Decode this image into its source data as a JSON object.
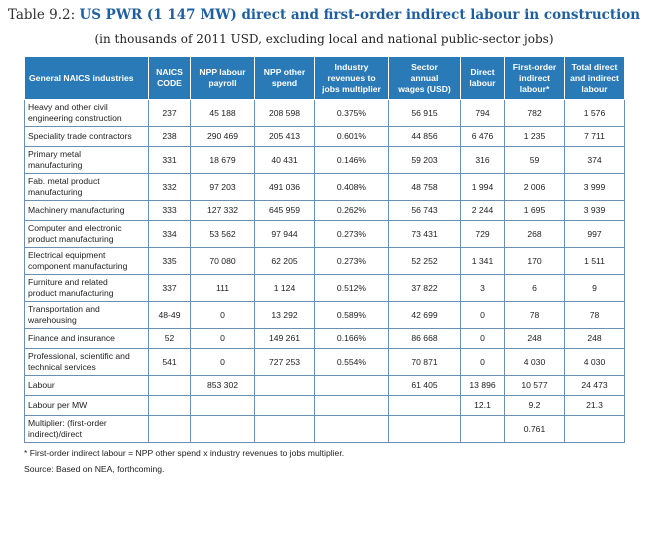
{
  "title_prefix": "Table 9.2: ",
  "title": "US PWR (1 147 MW) direct and first-order indirect labour in construction",
  "subtitle": "(in thousands of 2011 USD, excluding local and national public-sector jobs)",
  "headers": {
    "industry": "General NAICS industries",
    "naics_1": "NAICS",
    "naics_2": "CODE",
    "npp_labour_1": "NPP labour",
    "npp_labour_2": "payroll",
    "npp_other_1": "NPP other",
    "npp_other_2": "spend",
    "revenues_1": "Industry",
    "revenues_2": "revenues to",
    "revenues_3": "jobs multiplier",
    "wages_1": "Sector",
    "wages_2": "annual",
    "wages_3": "wages (USD)",
    "direct_1": "Direct",
    "direct_2": "labour",
    "first_1": "First-order",
    "first_2": "indirect",
    "first_3": "labour*",
    "total_1": "Total direct",
    "total_2": "and indirect",
    "total_3": "labour"
  },
  "rows": [
    {
      "l1": "Heavy and other civil",
      "l2": "engineering construction",
      "code": "237",
      "payroll": "45 188",
      "spend": "208 598",
      "mult": "0.375%",
      "wages": "56 915",
      "direct": "794",
      "indirect": "782",
      "total": "1 576"
    },
    {
      "l1": "Speciality trade contractors",
      "l2": "",
      "code": "238",
      "payroll": "290 469",
      "spend": "205 413",
      "mult": "0.601%",
      "wages": "44 856",
      "direct": "6 476",
      "indirect": "1 235",
      "total": "7 711"
    },
    {
      "l1": "Primary metal",
      "l2": "manufacturing",
      "code": "331",
      "payroll": "18 679",
      "spend": "40 431",
      "mult": "0.146%",
      "wages": "59 203",
      "direct": "316",
      "indirect": "59",
      "total": "374"
    },
    {
      "l1": "Fab. metal product",
      "l2": "manufacturing",
      "code": "332",
      "payroll": "97 203",
      "spend": "491 036",
      "mult": "0.408%",
      "wages": "48 758",
      "direct": "1 994",
      "indirect": "2 006",
      "total": "3 999"
    },
    {
      "l1": "Machinery manufacturing",
      "l2": "",
      "code": "333",
      "payroll": "127 332",
      "spend": "645 959",
      "mult": "0.262%",
      "wages": "56 743",
      "direct": "2 244",
      "indirect": "1 695",
      "total": "3 939"
    },
    {
      "l1": "Computer and electronic",
      "l2": "product manufacturing",
      "code": "334",
      "payroll": "53 562",
      "spend": "97 944",
      "mult": "0.273%",
      "wages": "73 431",
      "direct": "729",
      "indirect": "268",
      "total": "997"
    },
    {
      "l1": "Electrical equipment",
      "l2": "component manufacturing",
      "code": "335",
      "payroll": "70 080",
      "spend": "62 205",
      "mult": "0.273%",
      "wages": "52 252",
      "direct": "1 341",
      "indirect": "170",
      "total": "1 511"
    },
    {
      "l1": "Furniture and related",
      "l2": "product manufacturing",
      "code": "337",
      "payroll": "111",
      "spend": "1 124",
      "mult": "0.512%",
      "wages": "37 822",
      "direct": "3",
      "indirect": "6",
      "total": "9"
    },
    {
      "l1": "Transportation and",
      "l2": "warehousing",
      "code": "48-49",
      "payroll": "0",
      "spend": "13 292",
      "mult": "0.589%",
      "wages": "42 699",
      "direct": "0",
      "indirect": "78",
      "total": "78"
    },
    {
      "l1": "Finance and insurance",
      "l2": "",
      "code": "52",
      "payroll": "0",
      "spend": "149 261",
      "mult": "0.166%",
      "wages": "86 668",
      "direct": "0",
      "indirect": "248",
      "total": "248"
    },
    {
      "l1": "Professional, scientific and",
      "l2": "technical services",
      "code": "541",
      "payroll": "0",
      "spend": "727 253",
      "mult": "0.554%",
      "wages": "70 871",
      "direct": "0",
      "indirect": "4 030",
      "total": "4 030"
    },
    {
      "l1": "Labour",
      "l2": "",
      "code": "",
      "payroll": "853 302",
      "spend": "",
      "mult": "",
      "wages": "61 405",
      "direct": "13 896",
      "indirect": "10 577",
      "total": "24 473"
    },
    {
      "l1": "Labour per MW",
      "l2": "",
      "code": "",
      "payroll": "",
      "spend": "",
      "mult": "",
      "wages": "",
      "direct": "12.1",
      "indirect": "9.2",
      "total": "21.3"
    },
    {
      "l1": "Multiplier: (first-order",
      "l2": "indirect)/direct",
      "code": "",
      "payroll": "",
      "spend": "",
      "mult": "",
      "wages": "",
      "direct": "",
      "indirect": "0.761",
      "total": ""
    }
  ],
  "footnote": "* First-order indirect labour = NPP other spend x industry revenues to jobs multiplier.",
  "source": "Source: Based on NEA, forthcoming."
}
